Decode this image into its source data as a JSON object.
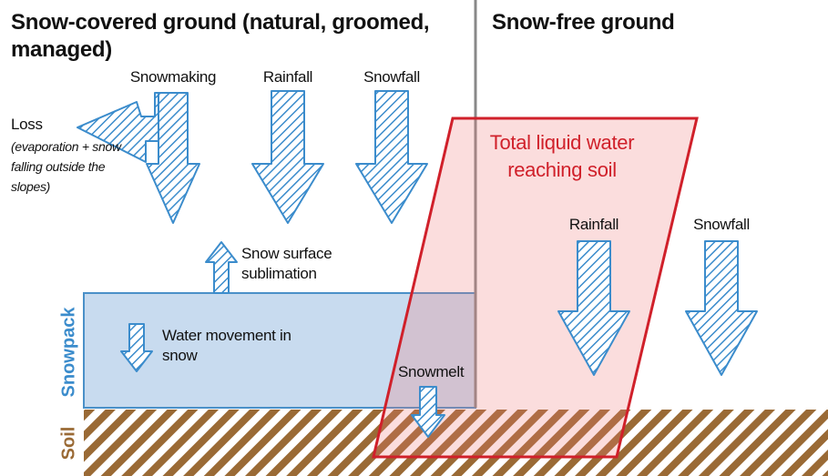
{
  "header": {
    "left_title": "Snow-covered ground (natural, groomed, managed)",
    "right_title": "Snow-free ground"
  },
  "left": {
    "snowmaking": "Snowmaking",
    "rainfall": "Rainfall",
    "snowfall": "Snowfall",
    "loss": "Loss",
    "loss_note": "(evaporation + snow falling outside the slopes)",
    "sublimation": "Snow surface sublimation",
    "water_movement": "Water movement in snow",
    "snowpack": "Snowpack",
    "soil": "Soil",
    "snowmelt": "Snowmelt"
  },
  "right": {
    "total_label": "Total liquid water reaching soil",
    "rainfall": "Rainfall",
    "snowfall": "Snowfall"
  }
}
